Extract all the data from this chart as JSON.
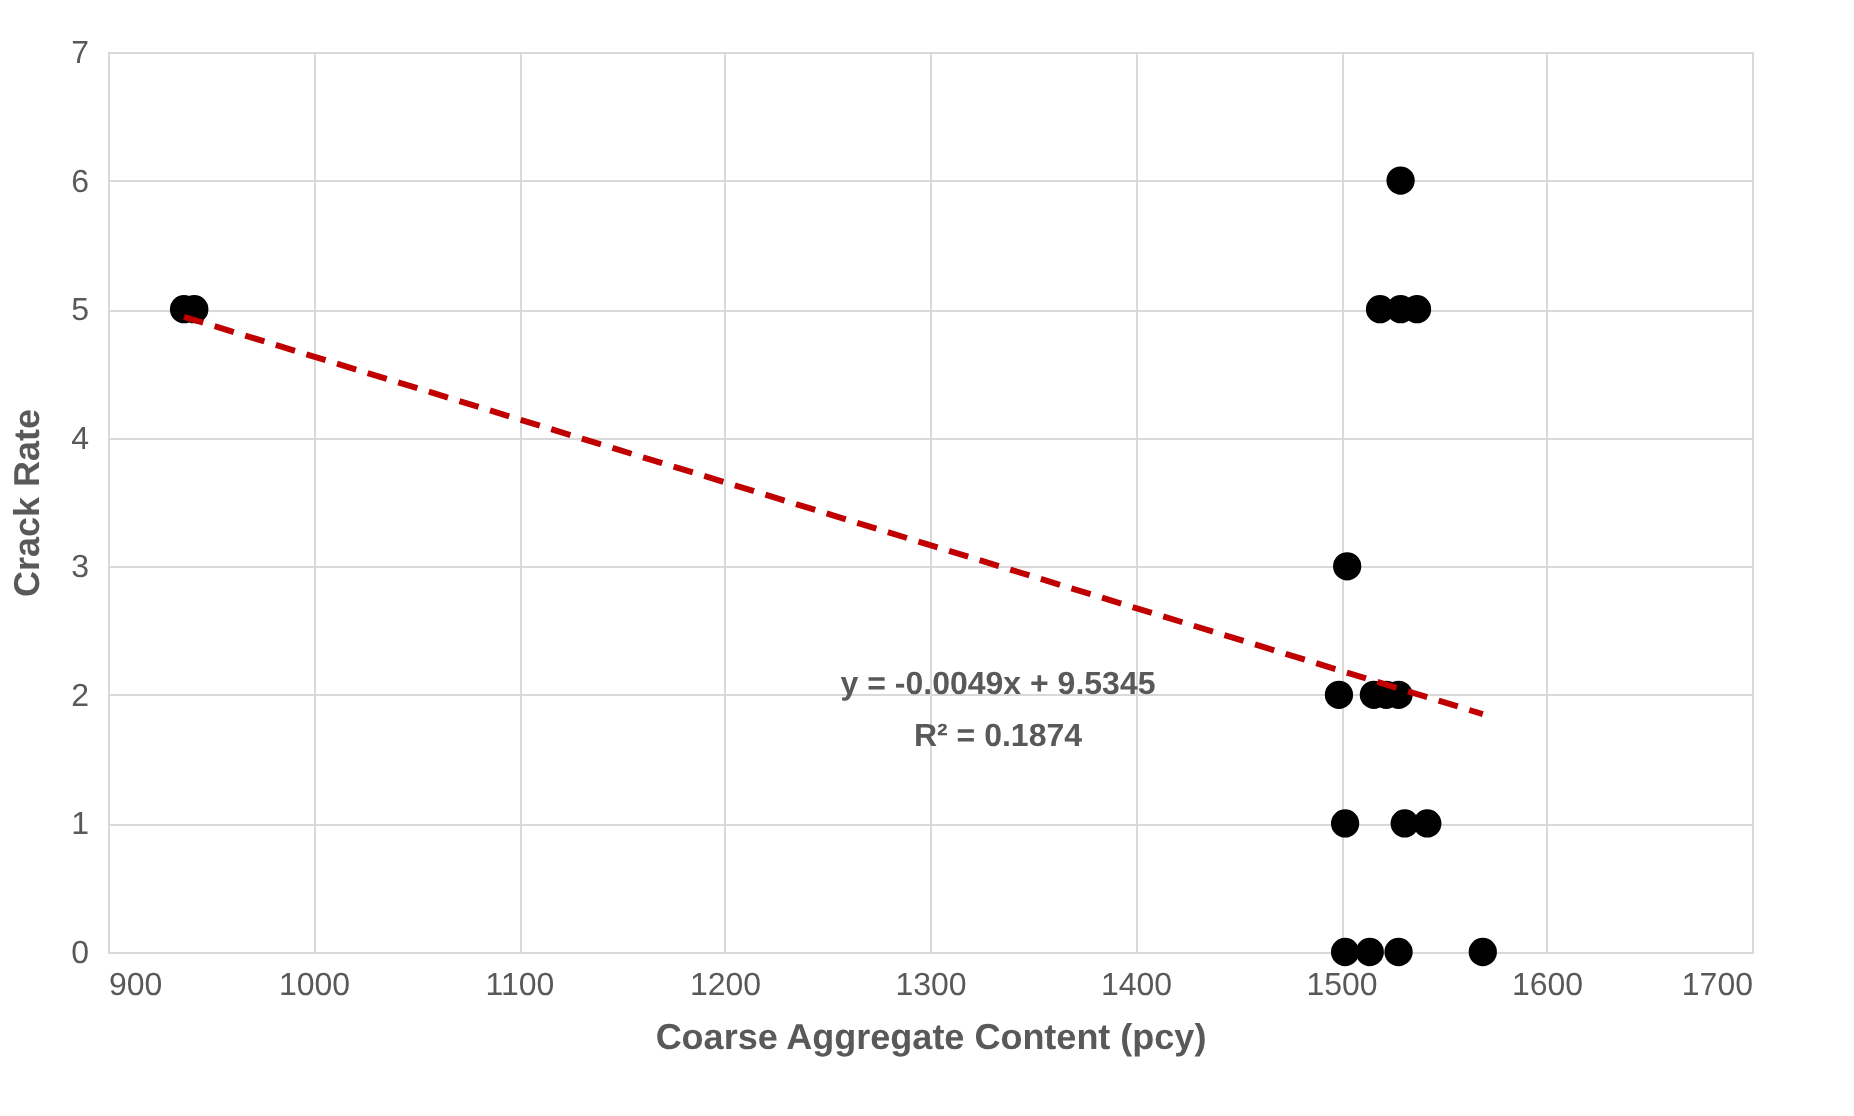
{
  "chart_data": {
    "type": "scatter",
    "xlabel": "Coarse Aggregate Content (pcy)",
    "ylabel": "Crack Rate",
    "xlim": [
      900,
      1700
    ],
    "xticks": [
      900,
      1000,
      1100,
      1200,
      1300,
      1400,
      1500,
      1600,
      1700
    ],
    "ylim": [
      0,
      7
    ],
    "yticks": [
      0,
      1,
      2,
      3,
      4,
      5,
      6,
      7
    ],
    "grid": true,
    "series": [
      {
        "color": "#000000",
        "marker": "circle",
        "x": [
          937,
          942,
          1529,
          1519,
          1529,
          1537,
          1503,
          1499,
          1516,
          1522,
          1528,
          1502,
          1531,
          1542,
          1502,
          1514,
          1528,
          1569
        ],
        "values": [
          5,
          5,
          6,
          5,
          5,
          5,
          3,
          2,
          2,
          2,
          2,
          1,
          1,
          1,
          0,
          0,
          0,
          0
        ]
      },
      {
        "type": "line",
        "color": "#c00000",
        "line_style": "dashed",
        "x": [
          937,
          1569
        ],
        "values": [
          4.94,
          1.85
        ]
      }
    ],
    "annotations": [
      "y = -0.0049x + 9.5345",
      "R² = 0.1874"
    ]
  }
}
